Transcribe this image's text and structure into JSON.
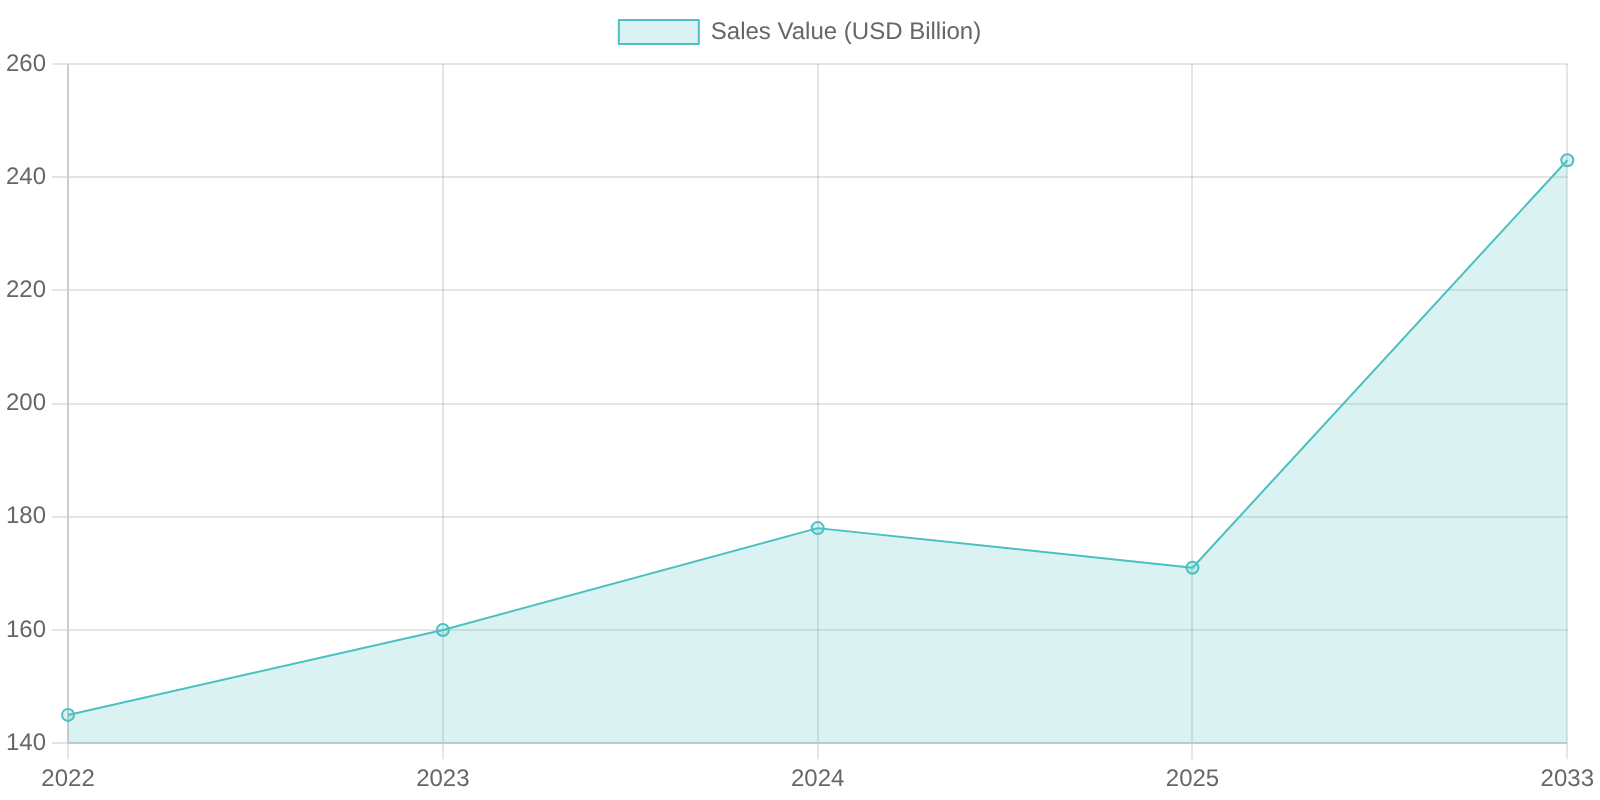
{
  "chart_data": {
    "type": "area",
    "categories": [
      "2022",
      "2023",
      "2024",
      "2025",
      "2033"
    ],
    "series": [
      {
        "name": "Sales Value (USD Billion)",
        "color": "#4bc0c0",
        "values": [
          145,
          160,
          178,
          171,
          243
        ]
      }
    ],
    "ylim": [
      140,
      260
    ],
    "yticks": [
      140,
      160,
      180,
      200,
      220,
      240,
      260
    ],
    "grid": true,
    "legend": "top",
    "marker": "circle"
  }
}
